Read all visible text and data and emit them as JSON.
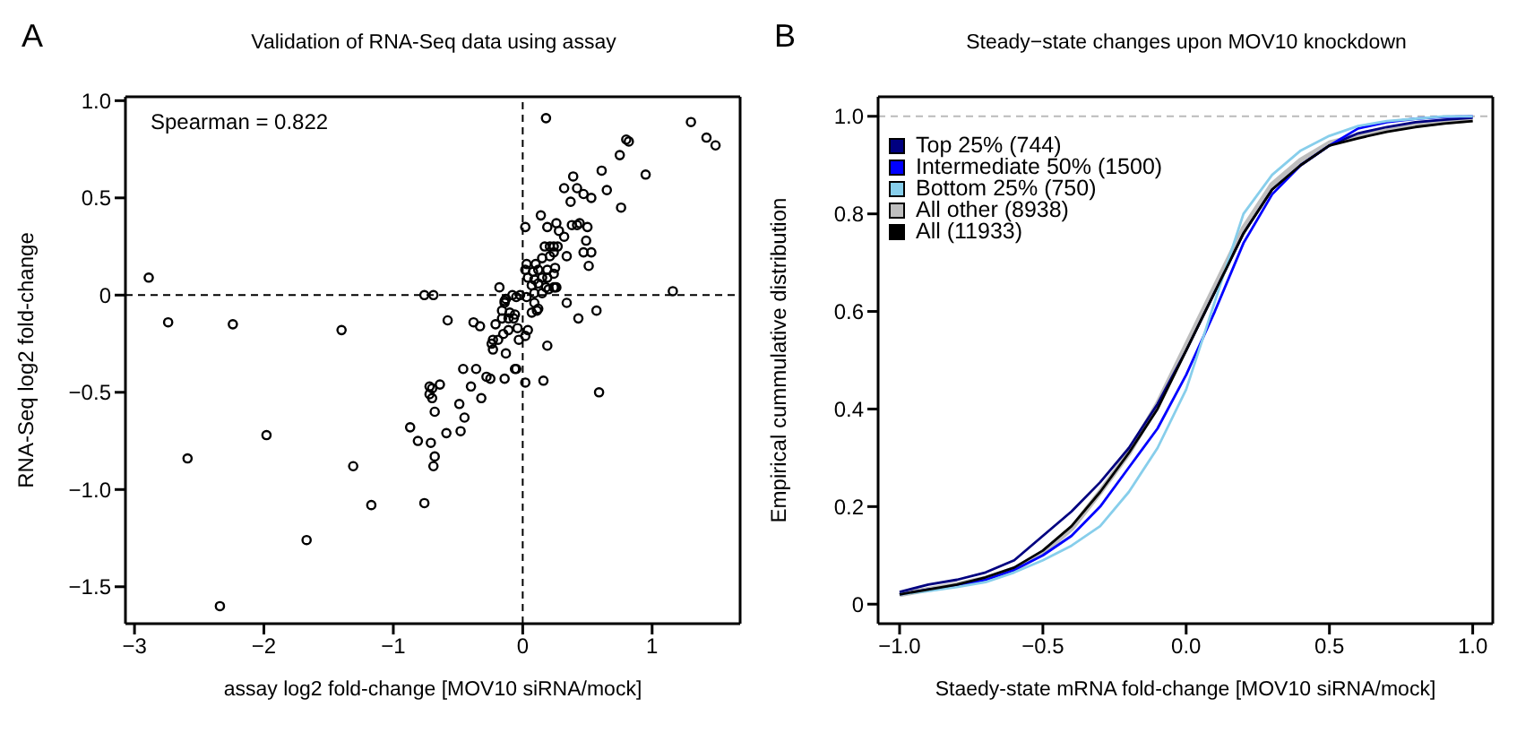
{
  "chart_data": [
    {
      "type": "scatter",
      "title": "Validation of RNA-Seq data using assay",
      "xlabel": "assay log2 fold-change [MOV10 siRNA/mock]",
      "ylabel": "RNA-Seq log2 fold-change",
      "annotations": [
        "A",
        "Spearman = 0.822"
      ],
      "color": "#000000",
      "marker": "circle",
      "grid": false,
      "legend": false,
      "x": [
        -2.89,
        -2.74,
        -2.24,
        -1.4,
        -0.76,
        -0.69,
        -0.58,
        -0.18,
        -0.38,
        -0.33,
        0.18,
        1.3,
        1.42,
        1.49,
        0.8,
        0.82,
        0.75,
        0.95,
        0.61,
        0.39,
        0.65,
        0.32,
        0.42,
        0.47,
        0.53,
        0.37,
        0.76,
        0.14,
        0.02,
        0.19,
        0.26,
        0.38,
        0.42,
        0.44,
        0.5,
        0.28,
        0.32,
        0.49,
        0.17,
        0.21,
        0.24,
        0.27,
        0.47,
        0.53,
        0.34,
        0.51,
        0.03,
        0.1,
        0.15,
        0.21,
        0.24,
        0.02,
        0.08,
        0.12,
        0.19,
        0.25,
        0.04,
        0.09,
        0.15,
        0.19,
        0.24,
        0.07,
        0.12,
        0.18,
        0.25,
        0.09,
        0.15,
        0.2,
        0.24,
        0.26,
        1.16,
        0.03,
        0.09,
        0.12,
        0.07,
        0.11,
        -0.13,
        -0.08,
        -0.05,
        -0.02,
        -0.14,
        -0.14,
        0.34,
        0.57,
        0.43,
        -0.16,
        -0.1,
        -0.06,
        -0.16,
        -0.11,
        -0.07,
        -0.21,
        -0.11,
        -0.04,
        0.04,
        0.02,
        -0.03,
        -0.15,
        -0.23,
        -0.19,
        -0.24,
        -0.23,
        -0.13,
        -0.05,
        0.19,
        -0.46,
        -0.36,
        -0.28,
        -0.25,
        -0.14,
        0.02,
        0.16,
        -0.06,
        0.59,
        -0.72,
        -0.7,
        -0.64,
        -0.72,
        -0.7,
        -0.4,
        -0.32,
        -0.49,
        -0.68,
        -0.45,
        -0.87,
        -0.48,
        -0.59,
        -1.98,
        -0.81,
        -0.71,
        -0.68,
        -0.69,
        -2.59,
        -1.31,
        -0.76,
        -1.17,
        -1.67,
        -2.34
      ],
      "values": [
        0.09,
        -0.14,
        -0.15,
        -0.18,
        0,
        0,
        -0.13,
        0.04,
        -0.14,
        -0.16,
        0.91,
        0.89,
        0.81,
        0.77,
        0.8,
        0.79,
        0.72,
        0.62,
        0.64,
        0.61,
        0.54,
        0.55,
        0.55,
        0.52,
        0.5,
        0.48,
        0.45,
        0.41,
        0.35,
        0.35,
        0.37,
        0.36,
        0.36,
        0.37,
        0.35,
        0.33,
        0.3,
        0.28,
        0.25,
        0.25,
        0.25,
        0.25,
        0.22,
        0.22,
        0.2,
        0.15,
        0.16,
        0.16,
        0.19,
        0.2,
        0.22,
        0.13,
        0.12,
        0.13,
        0.13,
        0.14,
        0.09,
        0.08,
        0.09,
        0.09,
        0.11,
        0.05,
        0.06,
        0.04,
        0.04,
        0.01,
        0.01,
        0.03,
        0.04,
        0.04,
        0.02,
        -0.01,
        -0.04,
        -0.07,
        -0.09,
        -0.08,
        -0.02,
        0,
        -0.01,
        0,
        -0.03,
        -0.04,
        -0.04,
        -0.08,
        -0.12,
        -0.08,
        -0.09,
        -0.1,
        -0.12,
        -0.12,
        -0.12,
        -0.15,
        -0.18,
        -0.17,
        -0.18,
        -0.21,
        -0.23,
        -0.2,
        -0.23,
        -0.23,
        -0.25,
        -0.28,
        -0.3,
        -0.38,
        -0.26,
        -0.38,
        -0.38,
        -0.42,
        -0.43,
        -0.43,
        -0.45,
        -0.44,
        -0.38,
        -0.5,
        -0.47,
        -0.48,
        -0.46,
        -0.51,
        -0.53,
        -0.47,
        -0.53,
        -0.56,
        -0.6,
        -0.63,
        -0.68,
        -0.7,
        -0.71,
        -0.72,
        -0.75,
        -0.76,
        -0.83,
        -0.88,
        -0.84,
        -0.88,
        -1.07,
        -1.08,
        -1.26,
        -1.6
      ],
      "xlim": [
        -3.07,
        1.68
      ],
      "ylim": [
        -1.69,
        1.02
      ],
      "xticks": [
        {
          "value": -3,
          "label": "−3"
        },
        {
          "value": -2,
          "label": "−2"
        },
        {
          "value": -1,
          "label": "−1"
        },
        0,
        1
      ],
      "yticks": [
        {
          "value": -1.5,
          "label": "−1.5"
        },
        {
          "value": -1,
          "label": "−1.0"
        },
        {
          "value": -0.5,
          "label": "−0.5"
        },
        0,
        {
          "value": 0.5,
          "label": "0.5"
        },
        {
          "value": 1,
          "label": "1.0"
        }
      ],
      "ref_lines": [
        {
          "axis": "x",
          "value": 0,
          "color": "#000000",
          "line_style": "dashed"
        },
        {
          "axis": "y",
          "value": 0,
          "color": "#000000",
          "line_style": "dashed"
        }
      ]
    },
    {
      "type": "line",
      "title": "Steady−state changes upon MOV10 knockdown",
      "xlabel": "Staedy-state mRNA fold-change [MOV10 siRNA/mock]",
      "ylabel": "Empirical cummulative distribution",
      "annotations": [
        "B"
      ],
      "grid": false,
      "legend": "top left",
      "marker": "none",
      "x": [
        -1,
        -0.9,
        -0.8,
        -0.7,
        -0.6,
        -0.5,
        -0.4,
        -0.3,
        -0.2,
        -0.1,
        0,
        0.1,
        0.2,
        0.3,
        0.4,
        0.5,
        0.6,
        0.7,
        0.8,
        0.9,
        1
      ],
      "series": [
        {
          "name": "Top 25% (744)",
          "color": "#000080",
          "values": [
            0.025,
            0.04,
            0.05,
            0.065,
            0.09,
            0.14,
            0.19,
            0.25,
            0.32,
            0.41,
            0.52,
            0.64,
            0.76,
            0.85,
            0.9,
            0.94,
            0.965,
            0.978,
            0.988,
            0.993,
            0.997
          ]
        },
        {
          "name": "Intermediate 50% (1500)",
          "color": "#0000ff",
          "values": [
            0.02,
            0.03,
            0.037,
            0.05,
            0.07,
            0.1,
            0.14,
            0.2,
            0.28,
            0.36,
            0.47,
            0.6,
            0.74,
            0.84,
            0.9,
            0.94,
            0.975,
            0.988,
            0.995,
            0.999,
            1.0
          ]
        },
        {
          "name": "Bottom 25% (750)",
          "color": "#87ceeb",
          "values": [
            0.02,
            0.027,
            0.035,
            0.045,
            0.065,
            0.09,
            0.12,
            0.16,
            0.23,
            0.32,
            0.44,
            0.62,
            0.8,
            0.88,
            0.93,
            0.96,
            0.98,
            0.99,
            0.995,
            1.0,
            1.0
          ]
        },
        {
          "name": "All other (8938)",
          "color": "#bebebe",
          "values": [
            0.02,
            0.03,
            0.04,
            0.053,
            0.072,
            0.105,
            0.155,
            0.23,
            0.31,
            0.41,
            0.53,
            0.65,
            0.77,
            0.86,
            0.91,
            0.945,
            0.96,
            0.972,
            0.982,
            0.988,
            0.993
          ]
        },
        {
          "name": "All (11933)",
          "color": "#000000",
          "values": [
            0.02,
            0.03,
            0.04,
            0.055,
            0.075,
            0.11,
            0.16,
            0.23,
            0.31,
            0.4,
            0.52,
            0.64,
            0.76,
            0.85,
            0.9,
            0.94,
            0.955,
            0.968,
            0.978,
            0.985,
            0.99
          ]
        }
      ],
      "xlim": [
        -1.075,
        1.07
      ],
      "ylim": [
        -0.04,
        1.04
      ],
      "xticks": [
        {
          "value": -1,
          "label": "−1.0"
        },
        {
          "value": -0.5,
          "label": "−0.5"
        },
        {
          "value": 0,
          "label": "0.0"
        },
        {
          "value": 0.5,
          "label": "0.5"
        },
        {
          "value": 1,
          "label": "1.0"
        }
      ],
      "yticks": [
        0,
        {
          "value": 0.2,
          "label": "0.2"
        },
        {
          "value": 0.4,
          "label": "0.4"
        },
        {
          "value": 0.6,
          "label": "0.6"
        },
        {
          "value": 0.8,
          "label": "0.8"
        },
        {
          "value": 1,
          "label": "1.0"
        }
      ],
      "ref_lines": [
        {
          "axis": "y",
          "value": 1,
          "color": "#bbbbbb",
          "line_style": "dashed"
        }
      ]
    }
  ]
}
